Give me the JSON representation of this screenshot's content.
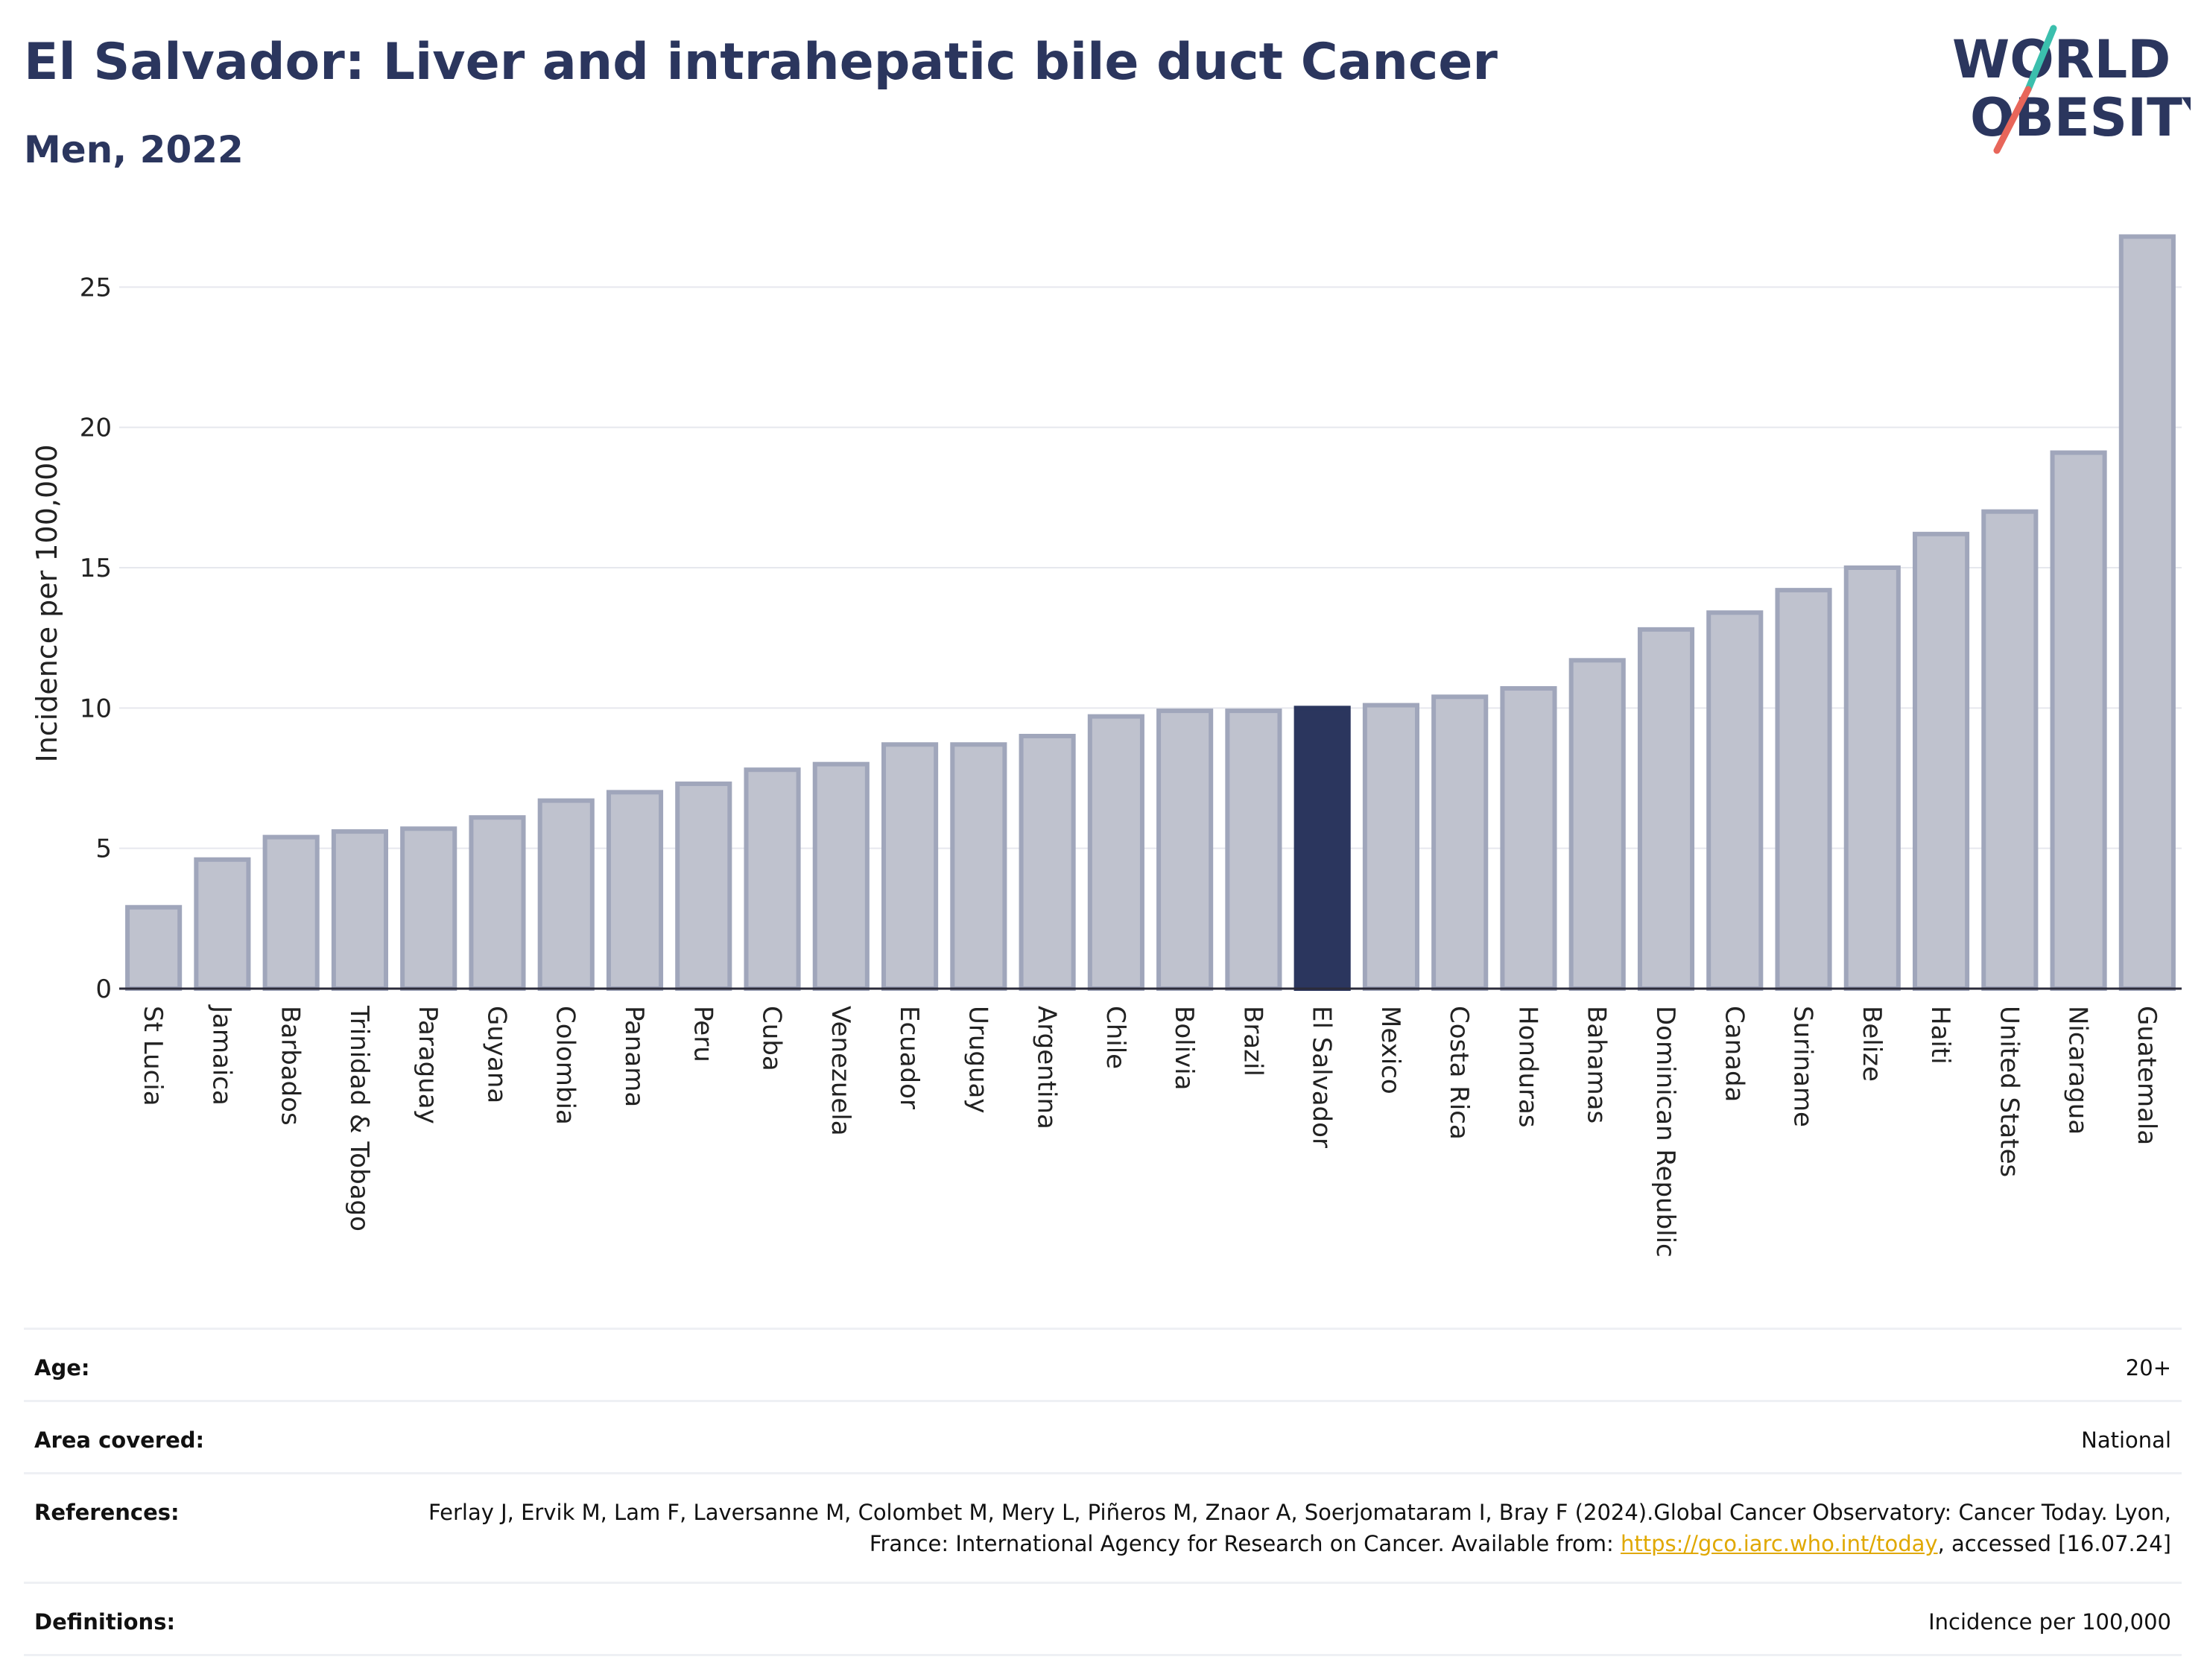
{
  "header": {
    "title": "El Salvador: Liver and intrahepatic bile duct Cancer",
    "subtitle": "Men, 2022"
  },
  "logo": {
    "line1": "WORLD",
    "line2": "OBESITY",
    "text_color": "#2b365e",
    "slash_color_top": "#3bbfad",
    "slash_color_bottom": "#e8665a"
  },
  "chart_data": {
    "type": "bar",
    "title": "El Salvador: Liver and intrahepatic bile duct Cancer",
    "subtitle": "Men, 2022",
    "xlabel": "",
    "ylabel": "Incidence per 100,000",
    "ylim": [
      0,
      27
    ],
    "yticks": [
      0,
      5,
      10,
      15,
      20,
      25
    ],
    "grid": true,
    "highlight": "El Salvador",
    "bar_color": "#bfc2ce",
    "bar_edge_color": "#a0a6bb",
    "highlight_color": "#2b365e",
    "categories": [
      "St Lucia",
      "Jamaica",
      "Barbados",
      "Trinidad & Tobago",
      "Paraguay",
      "Guyana",
      "Colombia",
      "Panama",
      "Peru",
      "Cuba",
      "Venezuela",
      "Ecuador",
      "Uruguay",
      "Argentina",
      "Chile",
      "Bolivia",
      "Brazil",
      "El Salvador",
      "Mexico",
      "Costa Rica",
      "Honduras",
      "Bahamas",
      "Dominican Republic",
      "Canada",
      "Suriname",
      "Belize",
      "Haiti",
      "United States",
      "Nicaragua",
      "Guatemala"
    ],
    "values": [
      2.9,
      4.6,
      5.4,
      5.6,
      5.7,
      6.1,
      6.7,
      7.0,
      7.3,
      7.8,
      8.0,
      8.7,
      8.7,
      9.0,
      9.7,
      9.9,
      9.9,
      10.0,
      10.1,
      10.4,
      10.7,
      11.7,
      12.8,
      13.4,
      14.2,
      15.0,
      16.2,
      17.0,
      19.1,
      26.8
    ]
  },
  "meta": {
    "rows": [
      {
        "key": "Age:",
        "value": "20+"
      },
      {
        "key": "Area covered:",
        "value": "National"
      },
      {
        "key": "References:",
        "value_pre": "Ferlay J, Ervik M, Lam F, Laversanne M, Colombet M, Mery L, Piñeros M, Znaor A, Soerjomataram I, Bray F (2024).Global Cancer Observatory: Cancer Today. Lyon, France: International Agency for Research on Cancer. Available from: ",
        "link": "https://gco.iarc.who.int/today",
        "value_post": ", accessed [16.07.24]"
      },
      {
        "key": "Definitions:",
        "value": "Incidence per 100,000"
      }
    ]
  }
}
